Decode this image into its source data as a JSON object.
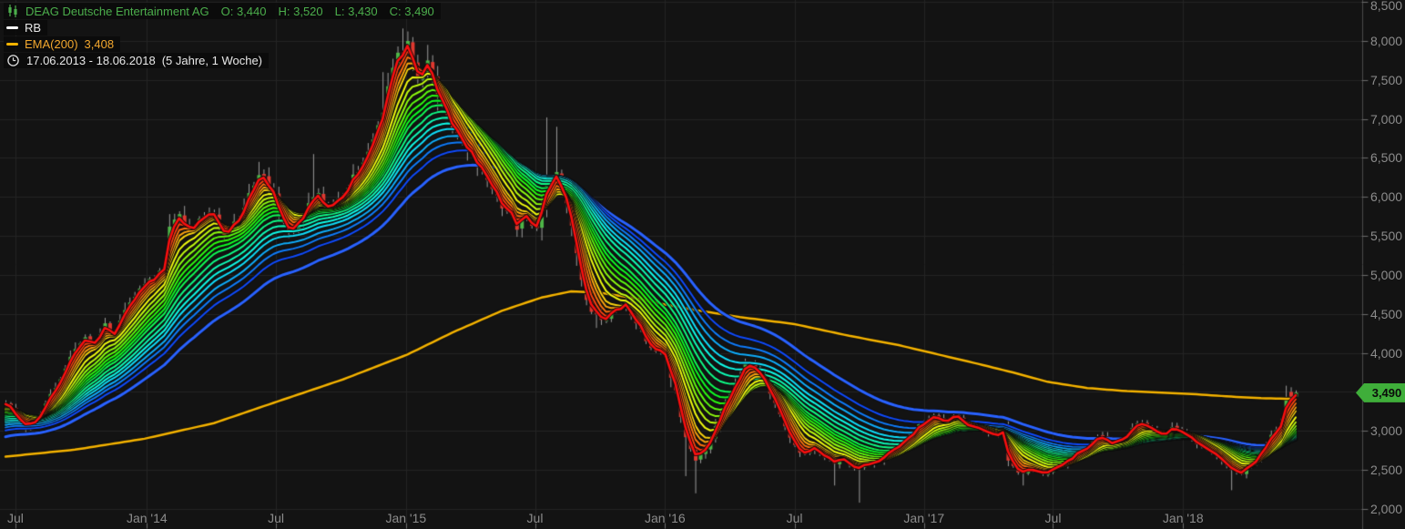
{
  "legend": {
    "symbol": {
      "title": "DEAG Deutsche Entertainment AG",
      "o": "O: 3,440",
      "h": "H: 3,520",
      "l": "L: 3,430",
      "c": "C: 3,490",
      "color": "#4cae4c"
    },
    "rb": {
      "label": "RB",
      "swatch_color": "#ffffff"
    },
    "ema": {
      "label": "EMA(200)",
      "value": "3,408",
      "text_color": "#f2a72e"
    },
    "period": {
      "range": "17.06.2013 - 18.06.2018",
      "detail": "(5 Jahre, 1 Woche)"
    }
  },
  "colors": {
    "background": "#131313",
    "grid": "#242424",
    "axis_line": "#4a4a4a",
    "tick": "#6a6a6a",
    "axis_text": "#8c8c8c",
    "candle_up": "#4fb648",
    "candle_down": "#e0382f",
    "wick": "#9c9c9c",
    "line_outline": "#0d0d0d",
    "ema200_line": "#f5b300",
    "slow_blue_line": "#2962ff",
    "tag_bg": "#3fae3a",
    "tag_text": "#0a0a0a"
  },
  "chart_data": {
    "type": "candlestick",
    "title": "DEAG Deutsche Entertainment AG",
    "interval": "1 Woche",
    "date_range": "17.06.2013 - 18.06.2018",
    "weeks_total": 261,
    "y_axis": {
      "ticks": [
        {
          "value": 8500,
          "label": "8,500"
        },
        {
          "value": 8000,
          "label": "8,000"
        },
        {
          "value": 7500,
          "label": "7,500"
        },
        {
          "value": 7000,
          "label": "7,000"
        },
        {
          "value": 6500,
          "label": "6,500"
        },
        {
          "value": 6000,
          "label": "6,000"
        },
        {
          "value": 5500,
          "label": "5,500"
        },
        {
          "value": 5000,
          "label": "5,000"
        },
        {
          "value": 4500,
          "label": "4,500"
        },
        {
          "value": 4000,
          "label": "4,000"
        },
        {
          "value": 3500,
          "label": "3,500"
        },
        {
          "value": 3000,
          "label": "3,000"
        },
        {
          "value": 2500,
          "label": "2,500"
        },
        {
          "value": 2000,
          "label": "2,000"
        }
      ],
      "visible_range": [
        1950,
        8550
      ]
    },
    "x_axis": {
      "ticks": [
        {
          "label": "Jul",
          "week": 2
        },
        {
          "label": "Jan '14",
          "week": 28.5
        },
        {
          "label": "Jul",
          "week": 54.5
        },
        {
          "label": "Jan '15",
          "week": 80.7
        },
        {
          "label": "Jul",
          "week": 106.7
        },
        {
          "label": "Jan '16",
          "week": 132.9
        },
        {
          "label": "Jul",
          "week": 159
        },
        {
          "label": "Jan '17",
          "week": 185.1
        },
        {
          "label": "Jul",
          "week": 211.1
        },
        {
          "label": "Jan '18",
          "week": 237.3
        }
      ]
    },
    "last_ohlc": {
      "open": 3.44,
      "high": 3.52,
      "low": 3.43,
      "close": 3.49
    },
    "close_anchors": [
      [
        0,
        3.35
      ],
      [
        2,
        3.18
      ],
      [
        4,
        3.06
      ],
      [
        6,
        3.12
      ],
      [
        8,
        3.35
      ],
      [
        10,
        3.55
      ],
      [
        12,
        3.8
      ],
      [
        14,
        4.05
      ],
      [
        16,
        4.2
      ],
      [
        18,
        4.12
      ],
      [
        20,
        4.38
      ],
      [
        22,
        4.22
      ],
      [
        24,
        4.55
      ],
      [
        26,
        4.72
      ],
      [
        28,
        4.88
      ],
      [
        30,
        4.95
      ],
      [
        32,
        5.1
      ],
      [
        33,
        5.62
      ],
      [
        35,
        5.78
      ],
      [
        37,
        5.6
      ],
      [
        39,
        5.72
      ],
      [
        41,
        5.8
      ],
      [
        43,
        5.62
      ],
      [
        45,
        5.55
      ],
      [
        47,
        5.72
      ],
      [
        49,
        6.05
      ],
      [
        51,
        6.28
      ],
      [
        53,
        6.1
      ],
      [
        55,
        5.8
      ],
      [
        57,
        5.55
      ],
      [
        59,
        5.7
      ],
      [
        61,
        5.92
      ],
      [
        63,
        6.05
      ],
      [
        65,
        5.85
      ],
      [
        67,
        5.98
      ],
      [
        69,
        6.12
      ],
      [
        71,
        6.32
      ],
      [
        73,
        6.58
      ],
      [
        75,
        6.92
      ],
      [
        77,
        7.42
      ],
      [
        79,
        7.85
      ],
      [
        81,
        8.0
      ],
      [
        83,
        7.52
      ],
      [
        85,
        7.75
      ],
      [
        87,
        7.28
      ],
      [
        89,
        7.05
      ],
      [
        91,
        6.82
      ],
      [
        93,
        6.58
      ],
      [
        95,
        6.38
      ],
      [
        97,
        6.22
      ],
      [
        99,
        6.02
      ],
      [
        101,
        5.82
      ],
      [
        103,
        5.58
      ],
      [
        105,
        5.78
      ],
      [
        107,
        5.6
      ],
      [
        109,
        6.15
      ],
      [
        111,
        6.32
      ],
      [
        113,
        5.92
      ],
      [
        115,
        5.28
      ],
      [
        117,
        4.68
      ],
      [
        119,
        4.5
      ],
      [
        121,
        4.42
      ],
      [
        123,
        4.58
      ],
      [
        125,
        4.65
      ],
      [
        127,
        4.38
      ],
      [
        129,
        4.15
      ],
      [
        131,
        4.02
      ],
      [
        133,
        3.95
      ],
      [
        135,
        3.52
      ],
      [
        137,
        2.92
      ],
      [
        139,
        2.62
      ],
      [
        141,
        2.78
      ],
      [
        143,
        3.06
      ],
      [
        145,
        3.38
      ],
      [
        147,
        3.62
      ],
      [
        149,
        3.86
      ],
      [
        151,
        3.8
      ],
      [
        153,
        3.62
      ],
      [
        155,
        3.36
      ],
      [
        157,
        3.06
      ],
      [
        159,
        2.82
      ],
      [
        161,
        2.7
      ],
      [
        163,
        2.8
      ],
      [
        165,
        2.66
      ],
      [
        167,
        2.58
      ],
      [
        169,
        2.64
      ],
      [
        171,
        2.52
      ],
      [
        173,
        2.58
      ],
      [
        175,
        2.6
      ],
      [
        177,
        2.68
      ],
      [
        179,
        2.78
      ],
      [
        181,
        2.88
      ],
      [
        183,
        2.98
      ],
      [
        185,
        3.1
      ],
      [
        187,
        3.2
      ],
      [
        189,
        3.12
      ],
      [
        191,
        3.2
      ],
      [
        193,
        3.1
      ],
      [
        195,
        3.05
      ],
      [
        197,
        3.0
      ],
      [
        199,
        2.95
      ],
      [
        201,
        3.0
      ],
      [
        202,
        2.62
      ],
      [
        203,
        2.55
      ],
      [
        205,
        2.46
      ],
      [
        207,
        2.5
      ],
      [
        209,
        2.46
      ],
      [
        211,
        2.52
      ],
      [
        213,
        2.58
      ],
      [
        215,
        2.66
      ],
      [
        217,
        2.76
      ],
      [
        219,
        2.86
      ],
      [
        221,
        2.92
      ],
      [
        223,
        2.82
      ],
      [
        225,
        2.9
      ],
      [
        227,
        3.04
      ],
      [
        229,
        3.1
      ],
      [
        231,
        3.02
      ],
      [
        233,
        2.95
      ],
      [
        235,
        3.05
      ],
      [
        237,
        2.98
      ],
      [
        239,
        2.9
      ],
      [
        241,
        2.8
      ],
      [
        243,
        2.72
      ],
      [
        245,
        2.62
      ],
      [
        247,
        2.5
      ],
      [
        249,
        2.45
      ],
      [
        251,
        2.58
      ],
      [
        253,
        2.75
      ],
      [
        255,
        2.95
      ],
      [
        257,
        3.1
      ],
      [
        258,
        3.4
      ],
      [
        259,
        3.44
      ],
      [
        260,
        3.49
      ]
    ],
    "open_overrides": {
      "259": 3.5
    },
    "wick_overrides": [
      {
        "week": 4,
        "type": "low",
        "value": 2.94
      },
      {
        "week": 33,
        "type": "high",
        "value": 5.78
      },
      {
        "week": 51,
        "type": "high",
        "value": 6.45
      },
      {
        "week": 62,
        "type": "high",
        "value": 6.55
      },
      {
        "week": 76,
        "type": "high",
        "value": 7.6
      },
      {
        "week": 80,
        "type": "high",
        "value": 8.16
      },
      {
        "week": 82,
        "type": "high",
        "value": 8.05
      },
      {
        "week": 85,
        "type": "high",
        "value": 7.95
      },
      {
        "week": 109,
        "type": "high",
        "value": 7.02
      },
      {
        "week": 111,
        "type": "high",
        "value": 6.9
      },
      {
        "week": 119,
        "type": "low",
        "value": 4.32
      },
      {
        "week": 137,
        "type": "low",
        "value": 2.42
      },
      {
        "week": 139,
        "type": "low",
        "value": 2.2
      },
      {
        "week": 167,
        "type": "low",
        "value": 2.3
      },
      {
        "week": 172,
        "type": "low",
        "value": 2.08
      },
      {
        "week": 205,
        "type": "low",
        "value": 2.3
      },
      {
        "week": 247,
        "type": "low",
        "value": 2.24
      },
      {
        "week": 258,
        "type": "high",
        "value": 3.58
      },
      {
        "week": 259,
        "type": "high",
        "value": 3.56
      }
    ],
    "noise_seed": 11,
    "overlays": {
      "rainbow": {
        "name": "RB",
        "periods": [
          2,
          3,
          4,
          5,
          6,
          8,
          10,
          12,
          14,
          16,
          18,
          20,
          23,
          26,
          29,
          32,
          36,
          40,
          45
        ],
        "hue_start": 0,
        "hue_end": 225
      },
      "slow_blue": {
        "period": 55,
        "width": 3
      },
      "ema200": {
        "name": "EMA(200)",
        "current_value": 3.408,
        "width": 2.5,
        "anchors": [
          [
            0,
            2.67
          ],
          [
            14,
            2.76
          ],
          [
            28,
            2.9
          ],
          [
            42,
            3.1
          ],
          [
            54,
            3.36
          ],
          [
            68,
            3.66
          ],
          [
            81,
            3.98
          ],
          [
            90,
            4.26
          ],
          [
            100,
            4.54
          ],
          [
            108,
            4.71
          ],
          [
            114,
            4.79
          ],
          [
            120,
            4.77
          ],
          [
            127,
            4.7
          ],
          [
            133,
            4.62
          ],
          [
            140,
            4.54
          ],
          [
            148,
            4.46
          ],
          [
            159,
            4.37
          ],
          [
            170,
            4.22
          ],
          [
            180,
            4.1
          ],
          [
            188,
            3.98
          ],
          [
            196,
            3.86
          ],
          [
            203,
            3.75
          ],
          [
            210,
            3.63
          ],
          [
            218,
            3.55
          ],
          [
            226,
            3.51
          ],
          [
            233,
            3.49
          ],
          [
            240,
            3.47
          ],
          [
            247,
            3.44
          ],
          [
            253,
            3.42
          ],
          [
            260,
            3.41
          ]
        ]
      }
    },
    "last_price_tag": {
      "value": 3490,
      "label": "3,490"
    }
  }
}
